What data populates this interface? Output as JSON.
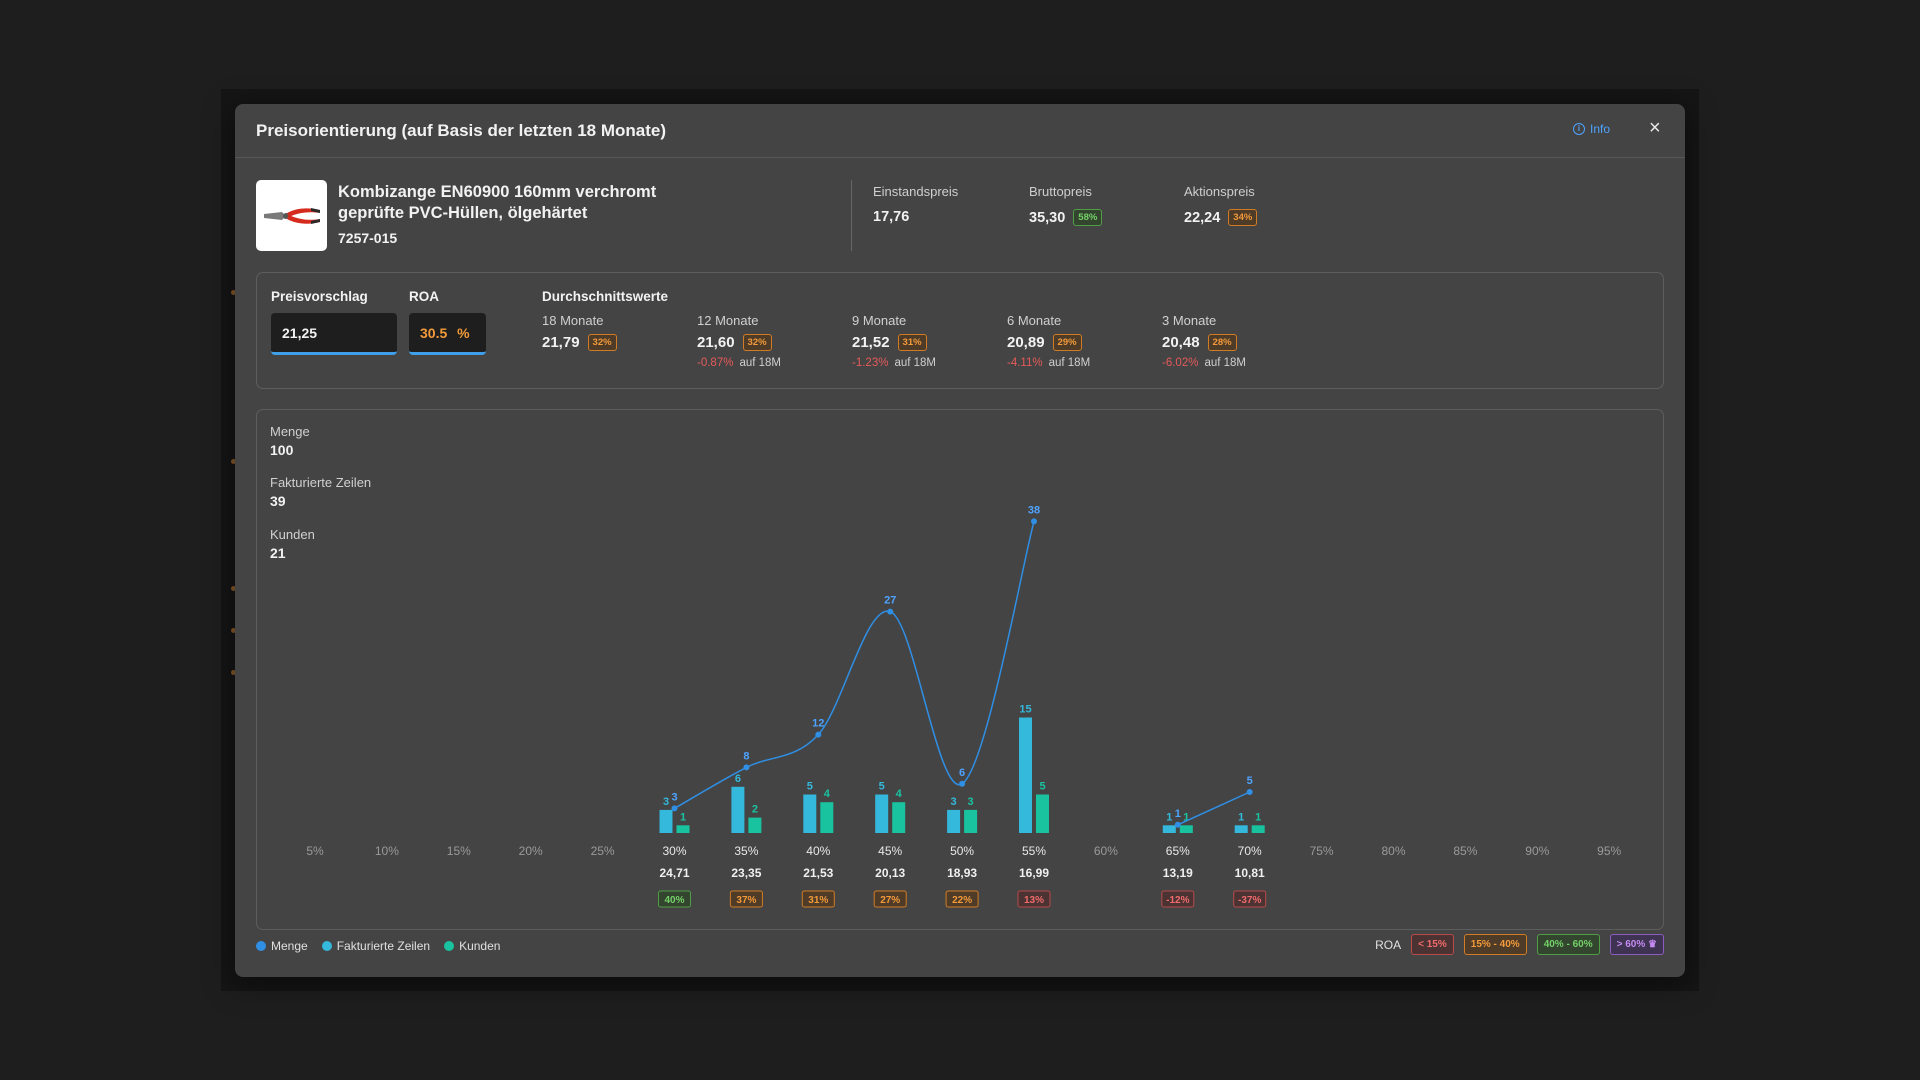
{
  "modal": {
    "title": "Preisorientierung (auf Basis der letzten 18 Monate)",
    "info_label": "Info",
    "close_glyph": "×"
  },
  "product": {
    "name_line1": "Kombizange EN60900 160mm verchromt",
    "name_line2": "geprüfte PVC-Hüllen, ölgehärtet",
    "code": "7257-015",
    "image_icon": "pliers-icon"
  },
  "prices": {
    "einstand": {
      "label": "Einstandspreis",
      "value": "17,76"
    },
    "brutto": {
      "label": "Bruttopreis",
      "value": "35,30",
      "badge": "58%"
    },
    "aktion": {
      "label": "Aktionspreis",
      "value": "22,24",
      "badge": "34%"
    }
  },
  "proposal": {
    "price_label": "Preisvorschlag",
    "price_value": "21,25",
    "roa_label": "ROA",
    "roa_value": "30.5",
    "roa_unit": "%"
  },
  "averages": {
    "title": "Durchschnittswerte",
    "items": [
      {
        "label": "18 Monate",
        "value": "21,79",
        "badge": "32%",
        "delta": "",
        "ref": ""
      },
      {
        "label": "12 Monate",
        "value": "21,60",
        "badge": "32%",
        "delta": "-0.87%",
        "ref": "auf 18M"
      },
      {
        "label": "9 Monate",
        "value": "21,52",
        "badge": "31%",
        "delta": "-1.23%",
        "ref": "auf 18M"
      },
      {
        "label": "6 Monate",
        "value": "20,89",
        "badge": "29%",
        "delta": "-4.11%",
        "ref": "auf 18M"
      },
      {
        "label": "3 Monate",
        "value": "20,48",
        "badge": "28%",
        "delta": "-6.02%",
        "ref": "auf 18M"
      }
    ]
  },
  "stats": {
    "menge": {
      "label": "Menge",
      "value": "100"
    },
    "zeilen": {
      "label": "Fakturierte Zeilen",
      "value": "39"
    },
    "kunden": {
      "label": "Kunden",
      "value": "21"
    }
  },
  "chart_data": {
    "type": "bar",
    "categories": [
      "5%",
      "10%",
      "15%",
      "20%",
      "25%",
      "30%",
      "35%",
      "40%",
      "45%",
      "50%",
      "55%",
      "60%",
      "65%",
      "70%",
      "75%",
      "80%",
      "85%",
      "90%",
      "95%"
    ],
    "prices": [
      "",
      "",
      "",
      "",
      "",
      "24,71",
      "23,35",
      "21,53",
      "20,13",
      "18,93",
      "16,99",
      "",
      "13,19",
      "10,81",
      "",
      "",
      "",
      "",
      ""
    ],
    "roa_badges": [
      "",
      "",
      "",
      "",
      "",
      "40%",
      "37%",
      "31%",
      "27%",
      "22%",
      "13%",
      "",
      "-12%",
      "-37%",
      "",
      "",
      "",
      "",
      ""
    ],
    "roa_badge_classes": [
      "",
      "",
      "",
      "",
      "",
      "green",
      "orange",
      "orange",
      "orange",
      "orange",
      "red",
      "",
      "red",
      "red",
      "",
      "",
      "",
      "",
      ""
    ],
    "series": [
      {
        "name": "Menge",
        "type": "line",
        "color": "#2f8fe5",
        "values": [
          null,
          null,
          null,
          null,
          null,
          3,
          8,
          12,
          27,
          6,
          38,
          null,
          1,
          5,
          null,
          null,
          null,
          null,
          null
        ]
      },
      {
        "name": "Fakturierte Zeilen",
        "type": "bar",
        "color": "#34b8dc",
        "values": [
          null,
          null,
          null,
          null,
          null,
          3,
          6,
          5,
          5,
          3,
          15,
          null,
          1,
          1,
          null,
          null,
          null,
          null,
          null
        ]
      },
      {
        "name": "Kunden",
        "type": "bar",
        "color": "#19c3a0",
        "values": [
          null,
          null,
          null,
          null,
          null,
          1,
          2,
          4,
          4,
          3,
          5,
          null,
          1,
          1,
          null,
          null,
          null,
          null,
          null
        ]
      }
    ]
  },
  "legend": {
    "items": [
      {
        "label": "Menge",
        "color": "#2f8fe5"
      },
      {
        "label": "Fakturierte Zeilen",
        "color": "#34b8dc"
      },
      {
        "label": "Kunden",
        "color": "#19c3a0"
      }
    ],
    "roa_label": "ROA",
    "roa_ranges": [
      {
        "label": "< 15%",
        "class": "red"
      },
      {
        "label": "15% - 40%",
        "class": "orange"
      },
      {
        "label": "40% - 60%",
        "class": "green"
      },
      {
        "label": "> 60% ♛",
        "class": "purple"
      }
    ]
  }
}
